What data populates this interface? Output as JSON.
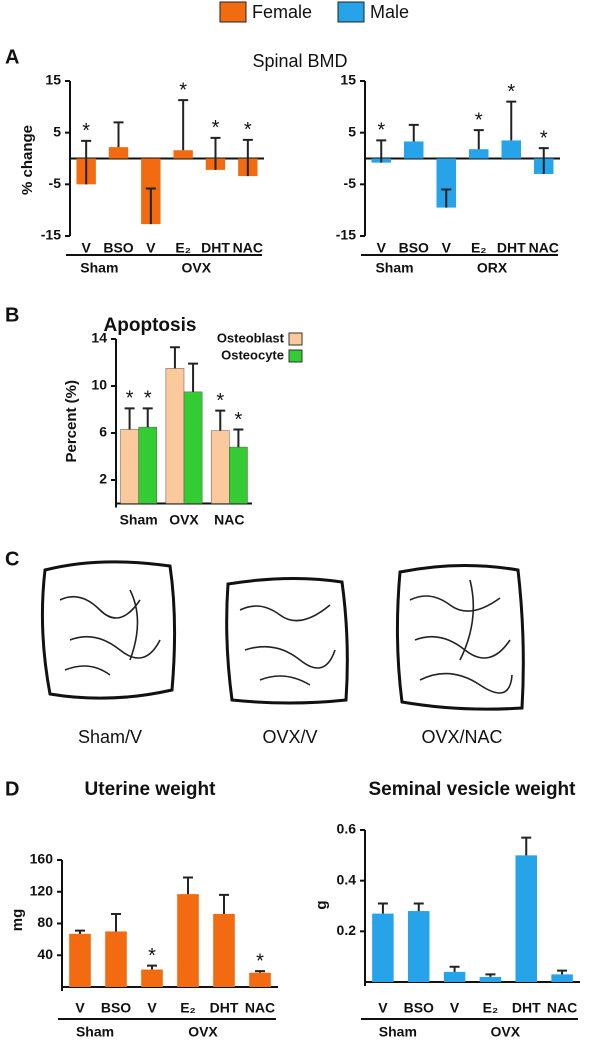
{
  "legend": [
    {
      "name": "Female",
      "color": "#f26b10"
    },
    {
      "name": "Male",
      "color": "#27a3ea"
    }
  ],
  "panel_labels": [
    "A",
    "B",
    "C",
    "D"
  ],
  "panel_a_title": "Spinal BMD",
  "chart_data": [
    {
      "type": "bar",
      "y_label": "% change",
      "ylim": [
        -15,
        15
      ],
      "yticks": [
        -15,
        -5,
        5,
        15
      ],
      "groups": [
        {
          "label": "Sham",
          "categories": [
            "V",
            "BSO"
          ]
        },
        {
          "label": "OVX",
          "categories": [
            "V",
            "E₂",
            "DHT",
            "NAC"
          ]
        }
      ],
      "values": [
        -5,
        2.2,
        -12.7,
        1.6,
        -2.2,
        -3.4
      ],
      "errors": [
        8.4,
        4.8,
        6.9,
        9.7,
        6.2,
        7.0
      ],
      "markers": [
        "*",
        null,
        null,
        "*",
        "*",
        "*"
      ],
      "color": "#f26b10"
    },
    {
      "type": "bar",
      "ylim": [
        -15,
        15
      ],
      "yticks": [
        -15,
        -5,
        5,
        15
      ],
      "groups": [
        {
          "label": "Sham",
          "categories": [
            "V",
            "BSO"
          ]
        },
        {
          "label": "ORX",
          "categories": [
            "V",
            "E₂",
            "DHT",
            "NAC"
          ]
        }
      ],
      "values": [
        -0.8,
        3.3,
        -9.5,
        1.8,
        3.5,
        -3.0
      ],
      "errors": [
        4.3,
        3.2,
        3.5,
        3.7,
        7.5,
        5.0
      ],
      "markers": [
        "*",
        null,
        null,
        "*",
        "*",
        "*"
      ],
      "color": "#27a3ea"
    },
    {
      "type": "grouped_bar",
      "title": "Apoptosis",
      "y_label": "Percent (%)",
      "ylim": [
        0,
        14
      ],
      "yticks": [
        2,
        6,
        10,
        14
      ],
      "categories": [
        "Sham",
        "OVX",
        "NAC"
      ],
      "legend_position": "upper right",
      "series": [
        {
          "name": "Osteoblast",
          "color": "#fbc99b",
          "values": [
            6.3,
            11.5,
            6.2
          ],
          "errors": [
            1.8,
            1.8,
            1.7
          ],
          "markers": [
            "*",
            null,
            "*"
          ]
        },
        {
          "name": "Osteocyte",
          "color": "#33cc33",
          "values": [
            6.5,
            9.5,
            4.8
          ],
          "errors": [
            1.6,
            2.4,
            1.5
          ],
          "markers": [
            "*",
            null,
            "*"
          ]
        }
      ]
    },
    {
      "type": "bar",
      "title": "Uterine weight",
      "y_label": "mg",
      "ylim": [
        0,
        160
      ],
      "yticks": [
        40,
        80,
        120,
        160
      ],
      "groups": [
        {
          "label": "Sham",
          "categories": [
            "V",
            "BSO"
          ]
        },
        {
          "label": "OVX",
          "categories": [
            "V",
            "E₂",
            "DHT",
            "NAC"
          ]
        }
      ],
      "values": [
        67,
        70,
        22,
        117,
        92,
        18
      ],
      "errors": [
        4,
        22,
        5,
        21,
        24,
        2
      ],
      "markers": [
        null,
        null,
        "*",
        null,
        null,
        "*"
      ],
      "color": "#f26b10"
    },
    {
      "type": "bar",
      "title": "Seminal vesicle weight",
      "y_label": "g",
      "ylim": [
        0,
        0.6
      ],
      "yticks": [
        0.2,
        0.4,
        0.6
      ],
      "groups": [
        {
          "label": "Sham",
          "categories": [
            "V",
            "BSO"
          ]
        },
        {
          "label": "OVX",
          "categories": [
            "V",
            "E₂",
            "DHT",
            "NAC"
          ]
        }
      ],
      "values": [
        0.27,
        0.28,
        0.04,
        0.02,
        0.5,
        0.03
      ],
      "errors": [
        0.04,
        0.03,
        0.02,
        0.01,
        0.07,
        0.015
      ],
      "color": "#27a3ea"
    }
  ],
  "micrographs": [
    "Sham/V",
    "OVX/V",
    "OVX/NAC"
  ]
}
